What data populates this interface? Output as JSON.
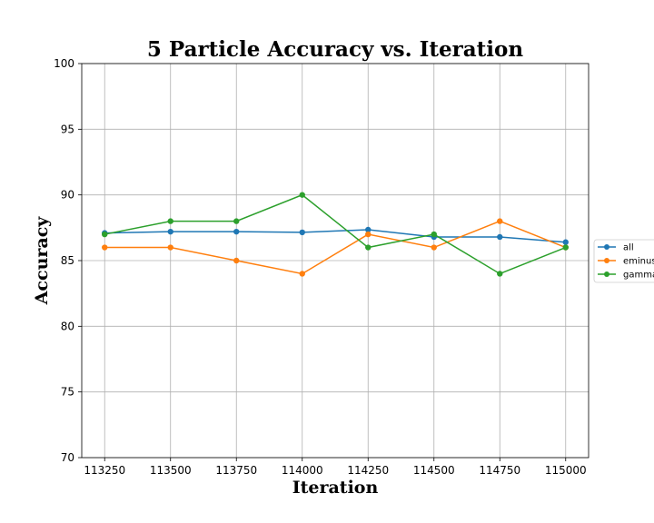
{
  "chart_data": {
    "type": "line",
    "title": "5 Particle Accuracy vs. Iteration",
    "xlabel": "Iteration",
    "ylabel": "Accuracy",
    "x": [
      113250,
      113500,
      113750,
      114000,
      114250,
      114500,
      114750,
      115000
    ],
    "x_tick_labels": [
      "113250",
      "113500",
      "113750",
      "114000",
      "114250",
      "114500",
      "114750",
      "115000"
    ],
    "y_ticks": [
      70,
      75,
      80,
      85,
      90,
      95,
      100
    ],
    "y_tick_labels": [
      "70",
      "75",
      "80",
      "85",
      "90",
      "95",
      "100"
    ],
    "xlim": [
      113163,
      115087
    ],
    "ylim": [
      70,
      100
    ],
    "grid": true,
    "legend_position": "right",
    "series": [
      {
        "name": "all",
        "color": "#1f77b4",
        "values": [
          87.1,
          87.2,
          87.2,
          87.15,
          87.35,
          86.8,
          86.8,
          86.4
        ]
      },
      {
        "name": "eminus",
        "color": "#ff7f0e",
        "values": [
          86,
          86,
          85,
          84,
          87,
          86,
          88,
          86
        ]
      },
      {
        "name": "gamma",
        "color": "#2ca02c",
        "values": [
          87,
          88,
          88,
          90,
          86,
          87,
          84,
          86
        ]
      }
    ]
  }
}
